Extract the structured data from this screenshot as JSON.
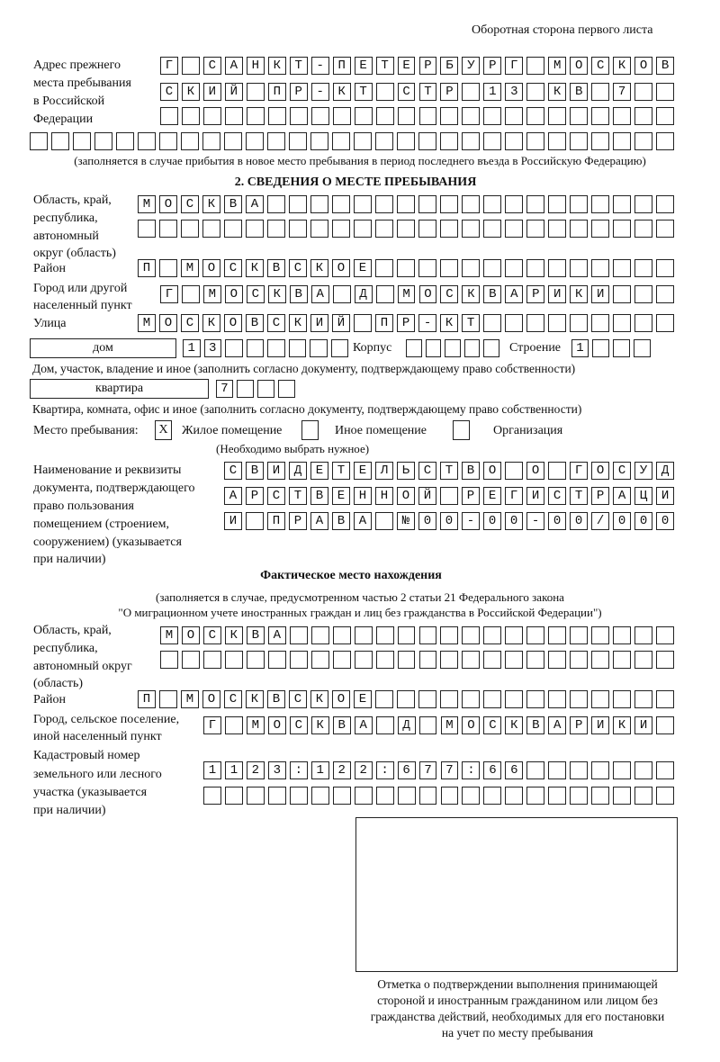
{
  "header": "Оборотная сторона первого листа",
  "prev_address": {
    "label": [
      "Адрес прежнего",
      "места пребывания",
      "в Российской",
      "Федерации"
    ],
    "rows": [
      "Г САНКТ-ПЕТЕРБУРГ МОСКОВ",
      "СКИЙ ПР-КТ СТР 13 КВ 7",
      "",
      ""
    ],
    "note": "(заполняется в случае прибытия в новое место пребывания в период последнего въезда в Российскую Федерацию)"
  },
  "section2": {
    "title": "2. СВЕДЕНИЯ О МЕСТЕ ПРЕБЫВАНИЯ",
    "region_label": [
      "Область, край,",
      "республика,",
      "автономный",
      "округ (область)"
    ],
    "region_rows": [
      "МОСКВА",
      ""
    ],
    "district_label": "Район",
    "district": "П МОСКВСКОЕ",
    "city_label": [
      "Город или другой",
      "населенный пункт"
    ],
    "city": "Г МОСКВА Д МОСКВАРИКИ",
    "street_label": "Улица",
    "street": "МОСКОВСКИЙ ПР-КТ",
    "house_type": "дом",
    "house": "13",
    "korpus_label": "Корпус",
    "korpus": "",
    "building_label": "Строение",
    "building": "1",
    "house_note": "Дом, участок, владение и иное (заполнить согласно документу, подтверждающему право собственности)",
    "flat_type": "квартира",
    "flat": "7",
    "flat_note": "Квартира, комната, офис и иное (заполнить согласно документу, подтверждающему право собственности)",
    "stay_label": "Место пребывания:",
    "stay_options": [
      {
        "label": "Жилое помещение",
        "mark": "X"
      },
      {
        "label": "Иное помещение",
        "mark": ""
      },
      {
        "label": "Организация",
        "mark": ""
      }
    ],
    "stay_note": "(Необходимо выбрать нужное)",
    "doc_label": [
      "Наименование и реквизиты",
      "документа, подтверждающего",
      "право пользования",
      "помещением (строением,",
      "сооружением) (указывается",
      "при наличии)"
    ],
    "doc_rows": [
      "СВИДЕТЕЛЬСТВО О ГОСУД",
      "АРСТВЕННОЙ РЕГИСТРАЦИ",
      "И ПРАВА №00-00-00/000"
    ]
  },
  "actual": {
    "title": "Фактическое место нахождения",
    "note": [
      "(заполняется в случае, предусмотренном частью 2 статьи 21 Федерального закона",
      "\"О миграционном учете иностранных граждан и лиц без гражданства в Российской Федерации\")"
    ],
    "region_label": [
      "Область, край,",
      "республика,",
      "автономный округ",
      "(область)"
    ],
    "region_rows": [
      "МОСКВА",
      ""
    ],
    "district_label": "Район",
    "district": "П МОСКВСКОЕ",
    "city_label": [
      "Город, сельское поселение,",
      "иной населенный пункт"
    ],
    "city": "Г МОСКВА Д МОСКВАРИКИ",
    "cadastral_label": [
      "Кадастровый номер",
      "земельного или лесного",
      "участка (указывается",
      "при наличии)"
    ],
    "cadastral_rows": [
      "1123:122:677:66",
      ""
    ]
  },
  "confirmation_caption": [
    "Отметка о подтверждении выполнения принимающей",
    "стороной и иностранным гражданином или лицом без",
    "гражданства действий, необходимых для его постановки",
    "на учет по месту пребывания"
  ]
}
